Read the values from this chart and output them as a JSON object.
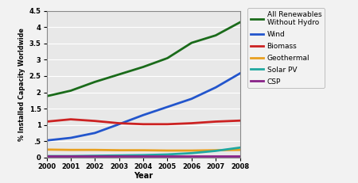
{
  "years": [
    2000,
    2001,
    2002,
    2003,
    2004,
    2005,
    2006,
    2007,
    2008
  ],
  "all_renewables": [
    1.88,
    2.05,
    2.32,
    2.55,
    2.78,
    3.05,
    3.52,
    3.75,
    4.15
  ],
  "wind": [
    0.52,
    0.6,
    0.75,
    1.02,
    1.3,
    1.55,
    1.8,
    2.15,
    2.58
  ],
  "biomass": [
    1.1,
    1.17,
    1.12,
    1.05,
    1.02,
    1.02,
    1.05,
    1.1,
    1.13
  ],
  "geothermal": [
    0.24,
    0.23,
    0.23,
    0.22,
    0.22,
    0.21,
    0.21,
    0.22,
    0.23
  ],
  "solar_pv": [
    0.04,
    0.04,
    0.05,
    0.06,
    0.07,
    0.09,
    0.13,
    0.2,
    0.3
  ],
  "csp": [
    0.03,
    0.03,
    0.03,
    0.03,
    0.03,
    0.03,
    0.03,
    0.03,
    0.03
  ],
  "colors": {
    "all_renewables": "#1a6b1a",
    "wind": "#2255cc",
    "biomass": "#cc2222",
    "geothermal": "#e8a020",
    "solar_pv": "#20a8a0",
    "csp": "#882288"
  },
  "legend_labels": {
    "all_renewables": "All Renewables\nWithout Hydro",
    "wind": "Wind",
    "biomass": "Biomass",
    "geothermal": "Geothermal",
    "solar_pv": "Solar PV",
    "csp": "CSP"
  },
  "ylabel": "% Installed Capacity Worldwide",
  "xlabel": "Year",
  "ylim": [
    0,
    4.5
  ],
  "yticks": [
    0,
    0.5,
    1.0,
    1.5,
    2.0,
    2.5,
    3.0,
    3.5,
    4.0,
    4.5
  ],
  "ytick_labels": [
    "0",
    ".5",
    "1",
    "1.5",
    "2",
    "2.5",
    "3",
    "3.5",
    "4",
    "4.5"
  ],
  "plot_bg_color": "#e8e8e8",
  "fig_bg_color": "#f2f2f2",
  "linewidth": 2.0
}
